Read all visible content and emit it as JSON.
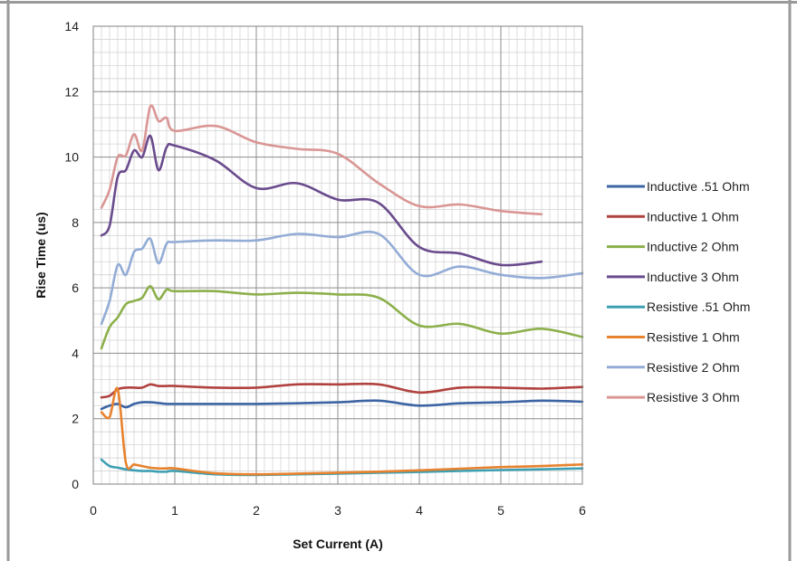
{
  "chart_data": {
    "type": "line",
    "xlabel": "Set Current (A)",
    "ylabel": "Rise Time (us)",
    "xlim": [
      0,
      6
    ],
    "ylim": [
      0,
      14
    ],
    "xticks": [
      "0",
      "1",
      "2",
      "3",
      "4",
      "5",
      "6"
    ],
    "yticks": [
      "0",
      "2",
      "4",
      "6",
      "8",
      "10",
      "12",
      "14"
    ],
    "grid": "major and minor",
    "legend": "right",
    "series": [
      {
        "name": "Inductive .51 Ohm",
        "color": "#3c64a4",
        "x": [
          0.1,
          0.2,
          0.3,
          0.4,
          0.5,
          0.6,
          0.7,
          0.8,
          0.9,
          1,
          1.5,
          2,
          2.5,
          3,
          3.5,
          4,
          4.5,
          5,
          5.5,
          6
        ],
        "y": [
          2.3,
          2.4,
          2.45,
          2.35,
          2.45,
          2.5,
          2.5,
          2.48,
          2.45,
          2.45,
          2.45,
          2.45,
          2.47,
          2.5,
          2.55,
          2.4,
          2.47,
          2.5,
          2.55,
          2.52
        ]
      },
      {
        "name": "Inductive 1 Ohm",
        "color": "#b0423f",
        "x": [
          0.1,
          0.2,
          0.3,
          0.4,
          0.5,
          0.6,
          0.7,
          0.8,
          0.9,
          1,
          1.5,
          2,
          2.5,
          3,
          3.5,
          4,
          4.5,
          5,
          5.5,
          6
        ],
        "y": [
          2.65,
          2.7,
          2.9,
          2.95,
          2.95,
          2.95,
          3.05,
          3.0,
          3.0,
          3.0,
          2.95,
          2.95,
          3.05,
          3.05,
          3.05,
          2.8,
          2.95,
          2.95,
          2.92,
          2.97
        ]
      },
      {
        "name": "Inductive 2 Ohm",
        "color": "#8cb04b",
        "x": [
          0.1,
          0.2,
          0.3,
          0.4,
          0.5,
          0.6,
          0.7,
          0.8,
          0.9,
          1,
          1.5,
          2,
          2.5,
          3,
          3.5,
          4,
          4.5,
          5,
          5.5,
          6
        ],
        "y": [
          4.15,
          4.8,
          5.1,
          5.5,
          5.6,
          5.7,
          6.05,
          5.65,
          5.95,
          5.9,
          5.9,
          5.8,
          5.85,
          5.8,
          5.7,
          4.85,
          4.9,
          4.6,
          4.75,
          4.5
        ]
      },
      {
        "name": "Inductive 3 Ohm",
        "color": "#6a4b8d",
        "x": [
          0.1,
          0.2,
          0.3,
          0.4,
          0.5,
          0.6,
          0.7,
          0.8,
          0.9,
          1,
          1.5,
          2,
          2.5,
          3,
          3.5,
          4,
          4.5,
          5,
          5.5
        ],
        "y": [
          7.6,
          7.9,
          9.4,
          9.6,
          10.2,
          10.0,
          10.65,
          9.6,
          10.3,
          10.35,
          9.9,
          9.05,
          9.2,
          8.7,
          8.6,
          7.25,
          7.05,
          6.7,
          6.8
        ]
      },
      {
        "name": "Resistive .51 Ohm",
        "color": "#3c9fb2",
        "x": [
          0.1,
          0.2,
          0.3,
          0.4,
          0.5,
          0.6,
          0.7,
          0.8,
          0.9,
          1,
          1.5,
          2,
          2.5,
          3,
          3.5,
          4,
          4.5,
          5,
          5.5,
          6
        ],
        "y": [
          0.75,
          0.55,
          0.5,
          0.45,
          0.42,
          0.4,
          0.4,
          0.38,
          0.38,
          0.4,
          0.3,
          0.28,
          0.3,
          0.32,
          0.35,
          0.37,
          0.4,
          0.43,
          0.45,
          0.48
        ]
      },
      {
        "name": "Resistive 1 Ohm",
        "color": "#e8822e",
        "x": [
          0.1,
          0.2,
          0.3,
          0.4,
          0.5,
          0.6,
          0.7,
          0.8,
          0.9,
          1,
          1.5,
          2,
          2.5,
          3,
          3.5,
          4,
          4.5,
          5,
          5.5,
          6
        ],
        "y": [
          2.2,
          2.05,
          2.9,
          0.65,
          0.6,
          0.55,
          0.5,
          0.48,
          0.48,
          0.48,
          0.33,
          0.3,
          0.32,
          0.35,
          0.38,
          0.42,
          0.47,
          0.52,
          0.55,
          0.6
        ]
      },
      {
        "name": "Resistive 2 Ohm",
        "color": "#93acd6",
        "x": [
          0.1,
          0.2,
          0.3,
          0.4,
          0.5,
          0.6,
          0.7,
          0.8,
          0.9,
          1,
          1.5,
          2,
          2.5,
          3,
          3.5,
          4,
          4.5,
          5,
          5.5,
          6
        ],
        "y": [
          4.9,
          5.6,
          6.7,
          6.4,
          7.1,
          7.2,
          7.5,
          6.75,
          7.35,
          7.4,
          7.45,
          7.45,
          7.65,
          7.55,
          7.65,
          6.4,
          6.65,
          6.4,
          6.3,
          6.45
        ]
      },
      {
        "name": "Resistive 3 Ohm",
        "color": "#d99694",
        "x": [
          0.1,
          0.2,
          0.3,
          0.4,
          0.5,
          0.6,
          0.7,
          0.8,
          0.9,
          1,
          1.5,
          2,
          2.5,
          3,
          3.5,
          4,
          4.5,
          5,
          5.5
        ],
        "y": [
          8.45,
          9.0,
          10.0,
          10.05,
          10.7,
          10.2,
          11.55,
          11.1,
          11.2,
          10.8,
          10.95,
          10.45,
          10.25,
          10.1,
          9.2,
          8.5,
          8.55,
          8.35,
          8.25
        ]
      }
    ]
  }
}
